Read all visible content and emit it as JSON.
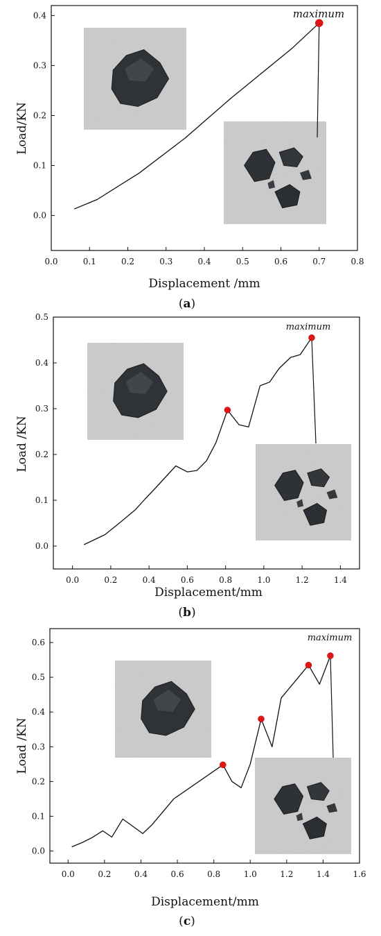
{
  "chart_data": [
    {
      "type": "line",
      "xlabel": "Displacement /mm",
      "ylabel": "Load/KN",
      "xlim": [
        0,
        0.8
      ],
      "ylim": [
        -0.07,
        0.42
      ],
      "xticks": [
        "0.0",
        "0.1",
        "0.2",
        "0.3",
        "0.4",
        "0.5",
        "0.6",
        "0.7",
        "0.8"
      ],
      "yticks": [
        "0.0",
        "0.1",
        "0.2",
        "0.3",
        "0.4"
      ],
      "caption": {
        "open": "(",
        "letter": "a",
        "close": ")"
      },
      "annotation": "maximum",
      "series": [
        {
          "x": [
            0.06,
            0.12,
            0.23,
            0.35,
            0.47,
            0.55,
            0.63,
            0.7
          ],
          "values": [
            0.013,
            0.032,
            0.085,
            0.155,
            0.235,
            0.285,
            0.335,
            0.385
          ]
        }
      ],
      "marked_points": [
        {
          "x": 0.7,
          "y": 0.385
        }
      ],
      "photos": [
        "intact-coal-sample",
        "fractured-coal-sample"
      ]
    },
    {
      "type": "line",
      "xlabel": "Displacement/mm",
      "ylabel": "Load /KN",
      "xlim": [
        -0.1,
        1.5
      ],
      "ylim": [
        -0.05,
        0.5
      ],
      "xticks": [
        "0.0",
        "0.2",
        "0.4",
        "0.6",
        "0.8",
        "1.0",
        "1.2",
        "1.4"
      ],
      "yticks": [
        "0.0",
        "0.1",
        "0.2",
        "0.3",
        "0.4",
        "0.5"
      ],
      "caption": {
        "open": "(",
        "letter": "b",
        "close": ")"
      },
      "annotation": "maximum",
      "series": [
        {
          "x": [
            0.06,
            0.17,
            0.25,
            0.33,
            0.38,
            0.43,
            0.54,
            0.6,
            0.65,
            0.7,
            0.75,
            0.81,
            0.87,
            0.92,
            0.98,
            1.03,
            1.08,
            1.14,
            1.19,
            1.25
          ],
          "values": [
            0.003,
            0.025,
            0.052,
            0.08,
            0.103,
            0.125,
            0.175,
            0.162,
            0.165,
            0.186,
            0.226,
            0.297,
            0.265,
            0.26,
            0.35,
            0.358,
            0.388,
            0.412,
            0.418,
            0.455
          ]
        }
      ],
      "marked_points": [
        {
          "x": 0.81,
          "y": 0.297
        },
        {
          "x": 1.25,
          "y": 0.455
        }
      ],
      "photos": [
        "intact-coal-sample",
        "fractured-coal-sample"
      ]
    },
    {
      "type": "line",
      "xlabel": "Displacement/mm",
      "ylabel": "Load /KN",
      "xlim": [
        -0.1,
        1.6
      ],
      "ylim": [
        -0.035,
        0.64
      ],
      "xticks": [
        "0.0",
        "0.2",
        "0.4",
        "0.6",
        "0.8",
        "1.0",
        "1.2",
        "1.4",
        "1.6"
      ],
      "yticks": [
        "0.0",
        "0.1",
        "0.2",
        "0.3",
        "0.4",
        "0.5",
        "0.6"
      ],
      "caption": {
        "open": "(",
        "letter": "c",
        "close": ")"
      },
      "annotation": "maximum",
      "series": [
        {
          "x": [
            0.02,
            0.08,
            0.13,
            0.19,
            0.24,
            0.3,
            0.41,
            0.46,
            0.58,
            0.85,
            0.9,
            0.95,
            1.0,
            1.06,
            1.12,
            1.17,
            1.32,
            1.38,
            1.44
          ],
          "values": [
            0.012,
            0.025,
            0.038,
            0.058,
            0.04,
            0.092,
            0.05,
            0.075,
            0.15,
            0.248,
            0.2,
            0.182,
            0.25,
            0.38,
            0.3,
            0.44,
            0.535,
            0.48,
            0.562
          ]
        }
      ],
      "marked_points": [
        {
          "x": 0.85,
          "y": 0.248
        },
        {
          "x": 1.06,
          "y": 0.38
        },
        {
          "x": 1.32,
          "y": 0.535
        },
        {
          "x": 1.44,
          "y": 0.562
        }
      ],
      "photos": [
        "intact-coal-sample",
        "fractured-coal-sample"
      ]
    }
  ]
}
